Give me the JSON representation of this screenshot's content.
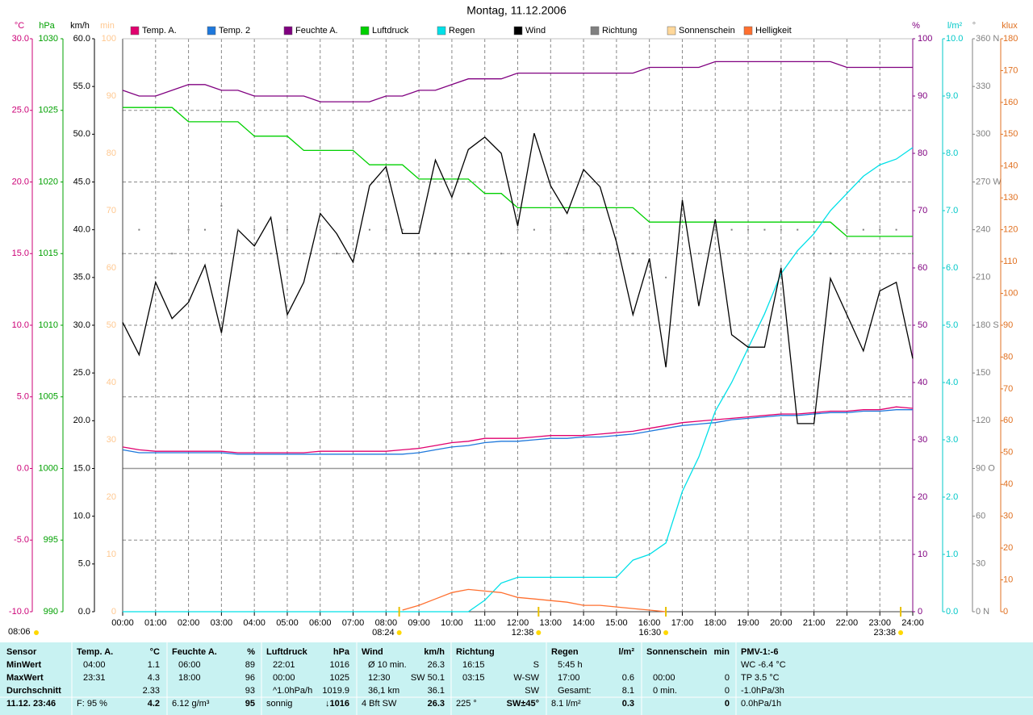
{
  "chart_data": {
    "type": "line",
    "title": "Montag, 11.12.2006",
    "left_marker": "08:06",
    "xlim": [
      0,
      24
    ],
    "xticks": [
      {
        "value": 0,
        "label": "00:00"
      },
      {
        "value": 1,
        "label": "01:00"
      },
      {
        "value": 2,
        "label": "02:00"
      },
      {
        "value": 3,
        "label": "03:00"
      },
      {
        "value": 4,
        "label": "04:00"
      },
      {
        "value": 5,
        "label": "05:00"
      },
      {
        "value": 6,
        "label": "06:00"
      },
      {
        "value": 7,
        "label": "07:00"
      },
      {
        "value": 8,
        "label": "08:00"
      },
      {
        "value": 9,
        "label": "09:00"
      },
      {
        "value": 10,
        "label": "10:00"
      },
      {
        "value": 11,
        "label": "11:00"
      },
      {
        "value": 12,
        "label": "12:00"
      },
      {
        "value": 13,
        "label": "13:00"
      },
      {
        "value": 14,
        "label": "14:00"
      },
      {
        "value": 15,
        "label": "15:00"
      },
      {
        "value": 16,
        "label": "16:00"
      },
      {
        "value": 17,
        "label": "17:00"
      },
      {
        "value": 18,
        "label": "18:00"
      },
      {
        "value": 19,
        "label": "19:00"
      },
      {
        "value": 20,
        "label": "20:00"
      },
      {
        "value": 21,
        "label": "21:00"
      },
      {
        "value": 22,
        "label": "22:00"
      },
      {
        "value": 23,
        "label": "23:00"
      },
      {
        "value": 24,
        "label": "24:00"
      }
    ],
    "grid": true,
    "grid_axis": "°C",
    "axes": [
      {
        "label": "°C",
        "color": "#cc0077",
        "lim": [
          -10,
          30
        ],
        "ticks": [
          {
            "value": -10,
            "label": "-10.0"
          },
          {
            "value": -5,
            "label": "-5.0"
          },
          {
            "value": 0,
            "label": "0.0"
          },
          {
            "value": 5,
            "label": "5.0"
          },
          {
            "value": 10,
            "label": "10.0"
          },
          {
            "value": 15,
            "label": "15.0"
          },
          {
            "value": 20,
            "label": "20.0"
          },
          {
            "value": 25,
            "label": "25.0"
          },
          {
            "value": 30,
            "label": "30.0"
          }
        ]
      },
      {
        "label": "hPa",
        "color": "#00a000",
        "lim": [
          990,
          1030
        ],
        "ticks": [
          990,
          995,
          1000,
          1005,
          1010,
          1015,
          1020,
          1025,
          1030
        ]
      },
      {
        "label": "km/h",
        "color": "#000000",
        "lim": [
          0,
          60
        ],
        "ticks": [
          {
            "value": 0,
            "label": "0.0"
          },
          {
            "value": 5,
            "label": "5.0"
          },
          {
            "value": 10,
            "label": "10.0"
          },
          {
            "value": 15,
            "label": "15.0"
          },
          {
            "value": 20,
            "label": "20.0"
          },
          {
            "value": 25,
            "label": "25.0"
          },
          {
            "value": 30,
            "label": "30.0"
          },
          {
            "value": 35,
            "label": "35.0"
          },
          {
            "value": 40,
            "label": "40.0"
          },
          {
            "value": 45,
            "label": "45.0"
          },
          {
            "value": 50,
            "label": "50.0"
          },
          {
            "value": 55,
            "label": "55.0"
          },
          {
            "value": 60,
            "label": "60.0"
          }
        ]
      },
      {
        "label": "min",
        "color": "#ffc890",
        "lim": [
          0,
          100
        ],
        "ticks": [
          0,
          10,
          20,
          30,
          40,
          50,
          60,
          70,
          80,
          90,
          100
        ]
      },
      {
        "label": "%",
        "color": "#800080",
        "lim": [
          0,
          100
        ],
        "ticks": [
          0,
          10,
          20,
          30,
          40,
          50,
          60,
          70,
          80,
          90,
          100
        ]
      },
      {
        "label": "l/m²",
        "color": "#00c8c8",
        "lim": [
          0,
          10
        ],
        "ticks": [
          {
            "value": 0,
            "label": "0.0"
          },
          {
            "value": 1,
            "label": "1.0"
          },
          {
            "value": 2,
            "label": "2.0"
          },
          {
            "value": 3,
            "label": "3.0"
          },
          {
            "value": 4,
            "label": "4.0"
          },
          {
            "value": 5,
            "label": "5.0"
          },
          {
            "value": 6,
            "label": "6.0"
          },
          {
            "value": 7,
            "label": "7.0"
          },
          {
            "value": 8,
            "label": "8.0"
          },
          {
            "value": 9,
            "label": "9.0"
          },
          {
            "value": 10,
            "label": "10.0"
          }
        ]
      },
      {
        "label": "°",
        "color": "#808080",
        "lim": [
          0,
          360
        ],
        "ticks": [
          {
            "value": 0,
            "label": "0 N"
          },
          30,
          60,
          {
            "value": 90,
            "label": "90 O"
          },
          120,
          150,
          {
            "value": 180,
            "label": "180 S"
          },
          210,
          240,
          {
            "value": 270,
            "label": "270 W"
          },
          300,
          330,
          {
            "value": 360,
            "label": "360 N"
          }
        ]
      },
      {
        "label": "klux",
        "color": "#e07020",
        "lim": [
          0,
          180
        ],
        "ticks": [
          0,
          10,
          20,
          30,
          40,
          50,
          60,
          70,
          80,
          90,
          100,
          110,
          120,
          130,
          140,
          150,
          160,
          170,
          180
        ]
      }
    ],
    "x": [
      0,
      0.5,
      1,
      1.5,
      2,
      2.5,
      3,
      3.5,
      4,
      4.5,
      5,
      5.5,
      6,
      6.5,
      7,
      7.5,
      8,
      8.5,
      9,
      9.5,
      10,
      10.5,
      11,
      11.5,
      12,
      12.5,
      13,
      13.5,
      14,
      14.5,
      15,
      15.5,
      16,
      16.5,
      17,
      17.5,
      18,
      18.5,
      19,
      19.5,
      20,
      20.5,
      21,
      21.5,
      22,
      22.5,
      23,
      23.5,
      24
    ],
    "series": [
      {
        "name": "Temp. A.",
        "color": "#e0006e",
        "axis": "°C",
        "style": "line",
        "values": [
          1.5,
          1.3,
          1.2,
          1.2,
          1.2,
          1.2,
          1.2,
          1.1,
          1.1,
          1.1,
          1.1,
          1.1,
          1.2,
          1.2,
          1.2,
          1.2,
          1.2,
          1.3,
          1.4,
          1.6,
          1.8,
          1.9,
          2.1,
          2.1,
          2.1,
          2.2,
          2.3,
          2.3,
          2.3,
          2.4,
          2.5,
          2.6,
          2.8,
          3.0,
          3.2,
          3.3,
          3.4,
          3.5,
          3.6,
          3.7,
          3.8,
          3.8,
          3.9,
          4.0,
          4.0,
          4.1,
          4.1,
          4.3,
          4.2
        ]
      },
      {
        "name": "Temp. 2",
        "color": "#1e78dc",
        "axis": "°C",
        "style": "line",
        "values": [
          1.3,
          1.1,
          1.1,
          1.1,
          1.1,
          1.1,
          1.1,
          1.0,
          1.0,
          1.0,
          1.0,
          1.0,
          1.0,
          1.0,
          1.0,
          1.0,
          1.0,
          1.0,
          1.1,
          1.3,
          1.5,
          1.6,
          1.8,
          1.9,
          1.9,
          2.0,
          2.1,
          2.1,
          2.2,
          2.2,
          2.3,
          2.4,
          2.6,
          2.8,
          3.0,
          3.1,
          3.2,
          3.4,
          3.5,
          3.6,
          3.7,
          3.7,
          3.8,
          3.9,
          3.9,
          4.0,
          4.0,
          4.1,
          4.1
        ]
      },
      {
        "name": "Feuchte A.",
        "color": "#800080",
        "axis": "%",
        "style": "line",
        "values": [
          91,
          90,
          90,
          91,
          92,
          92,
          91,
          91,
          90,
          90,
          90,
          90,
          89,
          89,
          89,
          89,
          90,
          90,
          91,
          91,
          92,
          93,
          93,
          93,
          94,
          94,
          94,
          94,
          94,
          94,
          94,
          94,
          95,
          95,
          95,
          95,
          96,
          96,
          96,
          96,
          96,
          96,
          96,
          96,
          95,
          95,
          95,
          95,
          95
        ]
      },
      {
        "name": "Luftdruck",
        "color": "#00d000",
        "axis": "hPa",
        "style": "line",
        "values": [
          1025.2,
          1025.2,
          1025.2,
          1025.2,
          1024.2,
          1024.2,
          1024.2,
          1024.2,
          1023.2,
          1023.2,
          1023.2,
          1022.2,
          1022.2,
          1022.2,
          1022.2,
          1021.2,
          1021.2,
          1021.2,
          1020.2,
          1020.2,
          1020.2,
          1020.2,
          1019.2,
          1019.2,
          1018.2,
          1018.2,
          1018.2,
          1018.2,
          1018.2,
          1018.2,
          1018.2,
          1018.2,
          1017.2,
          1017.2,
          1017.2,
          1017.2,
          1017.2,
          1017.2,
          1017.2,
          1017.2,
          1017.2,
          1017.2,
          1017.2,
          1017.2,
          1016.2,
          1016.2,
          1016.2,
          1016.2,
          1016.2
        ]
      },
      {
        "name": "Regen",
        "color": "#00e0e8",
        "axis": "l/m²",
        "style": "line",
        "values": [
          0,
          0,
          0,
          0,
          0,
          0,
          0,
          0,
          0,
          0,
          0,
          0,
          0,
          0,
          0,
          0,
          0,
          0,
          0,
          0,
          0,
          0,
          0.2,
          0.5,
          0.6,
          0.6,
          0.6,
          0.6,
          0.6,
          0.6,
          0.6,
          0.9,
          1.0,
          1.2,
          2.1,
          2.7,
          3.5,
          4.0,
          4.6,
          5.2,
          5.9,
          6.3,
          6.6,
          7.0,
          7.3,
          7.6,
          7.8,
          7.9,
          8.1
        ]
      },
      {
        "name": "Wind",
        "color": "#000000",
        "axis": "km/h",
        "style": "line",
        "values": [
          30.3,
          26.9,
          34.5,
          30.7,
          32.4,
          36.3,
          29.2,
          40.0,
          38.3,
          41.3,
          31.1,
          34.5,
          41.7,
          39.6,
          36.6,
          44.6,
          46.6,
          39.6,
          39.6,
          47.3,
          43.4,
          48.4,
          49.7,
          48.0,
          40.4,
          50.1,
          44.6,
          41.7,
          46.3,
          44.5,
          38.7,
          31.1,
          37.0,
          25.6,
          43.1,
          32.0,
          41.1,
          29.0,
          27.7,
          27.7,
          36.0,
          19.7,
          19.7,
          34.9,
          31.1,
          27.3,
          33.6,
          34.5,
          26.5
        ]
      },
      {
        "name": "Richtung",
        "color": "#808080",
        "axis": "°",
        "style": "dots",
        "values": [
          225,
          240,
          210,
          225,
          240,
          240,
          255,
          240,
          240,
          225,
          240,
          225,
          240,
          225,
          240,
          240,
          240,
          240,
          225,
          225,
          225,
          225,
          225,
          225,
          240,
          240,
          240,
          225,
          240,
          225,
          225,
          225,
          210,
          210,
          195,
          225,
          240,
          240,
          240,
          240,
          240,
          240,
          225,
          225,
          240,
          240,
          240,
          240,
          225
        ]
      },
      {
        "name": "Sonnenschein",
        "color": "#ffd89a",
        "axis": "min",
        "style": "bars",
        "values": [
          0,
          0,
          0,
          0,
          0,
          0,
          0,
          0,
          0,
          0,
          0,
          0,
          0,
          0,
          0,
          0,
          0,
          0,
          0,
          0,
          0,
          0,
          0,
          0,
          0,
          0,
          0,
          0,
          0,
          0,
          0,
          0,
          0,
          0,
          0,
          0,
          0,
          0,
          0,
          0,
          0,
          0,
          0,
          0,
          0,
          0,
          0,
          0,
          0
        ]
      },
      {
        "name": "Helligkeit",
        "color": "#ff7030",
        "axis": "klux",
        "style": "line",
        "values": [
          null,
          null,
          null,
          null,
          null,
          null,
          null,
          null,
          null,
          null,
          null,
          null,
          null,
          null,
          null,
          null,
          null,
          0.5,
          2,
          4,
          6,
          7,
          6.5,
          6,
          4.5,
          4,
          3.5,
          3,
          2,
          2,
          1.5,
          1,
          0.5,
          0,
          null,
          null,
          null,
          null,
          null,
          null,
          null,
          null,
          null,
          null,
          null,
          null,
          null,
          null,
          null
        ]
      }
    ],
    "sun_markers": [
      {
        "x": 8.4,
        "label": "08:24"
      },
      {
        "x": 12.633,
        "label": "12:38"
      },
      {
        "x": 16.5,
        "label": "16:30"
      },
      {
        "x": 23.633,
        "label": "23:38"
      }
    ]
  },
  "stats": {
    "columns": [
      {
        "title": "Sensor",
        "rows": [
          [
            "MinWert",
            null
          ],
          [
            "MaxWert",
            null
          ],
          [
            "Durchschnitt",
            null
          ],
          [
            "11.12. 23:46",
            null
          ]
        ]
      },
      {
        "title": "Temp. A.",
        "unit": "°C",
        "rows": [
          [
            "04:00",
            "1.1"
          ],
          [
            "23:31",
            "4.3"
          ],
          [
            null,
            "2.33"
          ],
          [
            "F: 95 %",
            "4.2"
          ]
        ]
      },
      {
        "title": "Feuchte A.",
        "unit": "%",
        "rows": [
          [
            "06:00",
            "89"
          ],
          [
            "18:00",
            "96"
          ],
          [
            null,
            "93"
          ],
          [
            "6.12 g/m³",
            "95"
          ]
        ]
      },
      {
        "title": "Luftdruck",
        "unit": "hPa",
        "rows": [
          [
            "22:01",
            "1016"
          ],
          [
            "00:00",
            "1025"
          ],
          [
            "^1.0hPa/h",
            "1019.9"
          ],
          [
            "sonnig",
            "↓1016"
          ]
        ]
      },
      {
        "title": "Wind",
        "unit": "km/h",
        "rows": [
          [
            "Ø 10 min.",
            "26.3"
          ],
          [
            "12:30",
            "SW 50.1"
          ],
          [
            "36,1 km",
            "36.1"
          ],
          [
            "4 Bft SW",
            "26.3"
          ]
        ]
      },
      {
        "title": "Richtung",
        "rows": [
          [
            "16:15",
            "S"
          ],
          [
            "03:15",
            "W-SW"
          ],
          [
            null,
            "SW"
          ],
          [
            "225 °",
            "SW±45°"
          ]
        ]
      },
      {
        "title": "Regen",
        "unit": "l/m²",
        "rows": [
          [
            "5:45 h",
            null
          ],
          [
            "17:00",
            "0.6"
          ],
          [
            "Gesamt:",
            "8.1"
          ],
          [
            "8.1 l/m²",
            "0.3"
          ]
        ]
      },
      {
        "title": "Sonnenschein",
        "unit": "min",
        "rows": [
          [
            null,
            null
          ],
          [
            "00:00",
            "0"
          ],
          [
            "0 min.",
            "0"
          ],
          [
            null,
            "0"
          ]
        ]
      },
      {
        "title": "PMV-1:-6",
        "rows": [
          [
            "WC -6.4 °C",
            null
          ],
          [
            "TP 3.5 °C",
            null
          ],
          [
            "-1.0hPa/3h",
            null
          ],
          [
            "0.0hPa/1h",
            null
          ]
        ]
      }
    ]
  }
}
